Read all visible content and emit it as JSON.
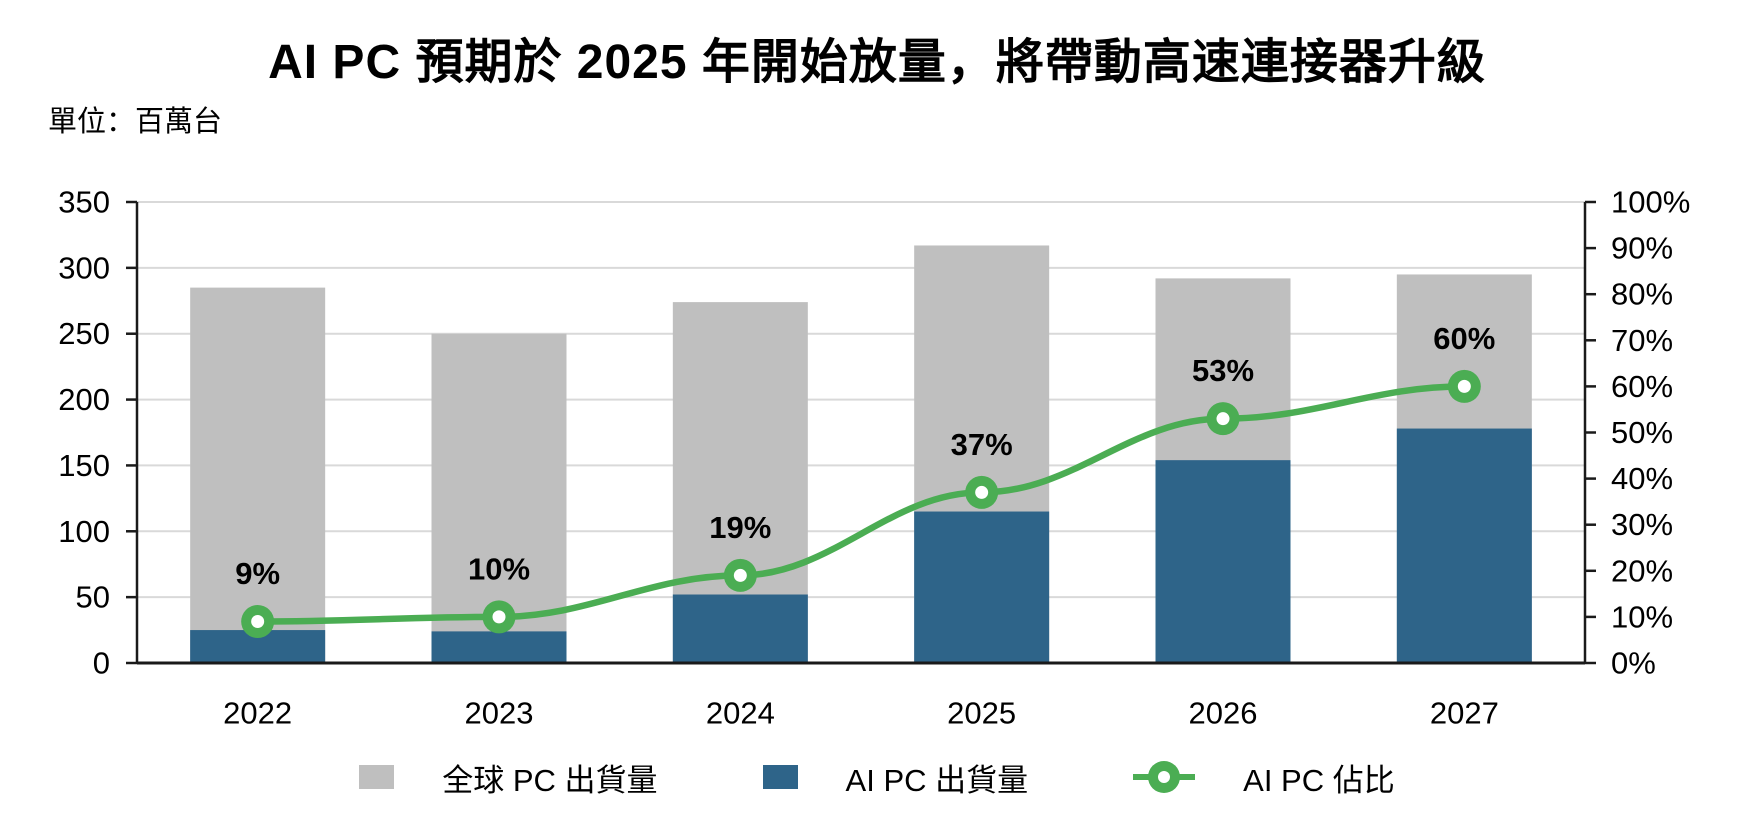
{
  "title": "AI PC 預期於 2025 年開始放量，將帶動高速連接器升級",
  "unit_label": "單位：百萬台",
  "colors": {
    "global_bar": "#BFBFBF",
    "ai_bar": "#2E6489",
    "share_line": "#4BAD53",
    "grid": "#D9D9D9",
    "axis": "#1a1a1a",
    "text": "#000000",
    "data_label": "#000000"
  },
  "chart_data": {
    "type": "combo-bar-line",
    "title": "AI PC 預期於 2025 年開始放量，將帶動高速連接器升級",
    "unit": "單位：百萬台",
    "categories": [
      "2022",
      "2023",
      "2024",
      "2025",
      "2026",
      "2027"
    ],
    "series": [
      {
        "name": "全球 PC 出貨量",
        "type": "bar",
        "axis": "left",
        "values": [
          285,
          250,
          274,
          317,
          292,
          295
        ]
      },
      {
        "name": "AI PC 出貨量",
        "type": "bar",
        "axis": "left",
        "values": [
          25,
          24,
          52,
          115,
          154,
          178
        ]
      },
      {
        "name": "AI PC 佔比",
        "type": "line",
        "axis": "right",
        "values": [
          9,
          10,
          19,
          37,
          53,
          60
        ],
        "point_labels": [
          "9%",
          "10%",
          "19%",
          "37%",
          "53%",
          "60%"
        ]
      }
    ],
    "left_axis": {
      "min": 0,
      "max": 350,
      "step": 50,
      "ticks": [
        "0",
        "50",
        "100",
        "150",
        "200",
        "250",
        "300",
        "350"
      ]
    },
    "right_axis": {
      "min": 0,
      "max": 100,
      "step": 10,
      "ticks": [
        "0%",
        "10%",
        "20%",
        "30%",
        "40%",
        "50%",
        "60%",
        "70%",
        "80%",
        "90%",
        "100%"
      ]
    },
    "grid": "horizontal",
    "legend_position": "bottom"
  },
  "legend": {
    "items": [
      {
        "label": "全球 PC 出貨量",
        "swatch": "gray-square"
      },
      {
        "label": "AI PC 出貨量",
        "swatch": "blue-square"
      },
      {
        "label": "AI PC 佔比",
        "swatch": "green-line-marker"
      }
    ]
  }
}
